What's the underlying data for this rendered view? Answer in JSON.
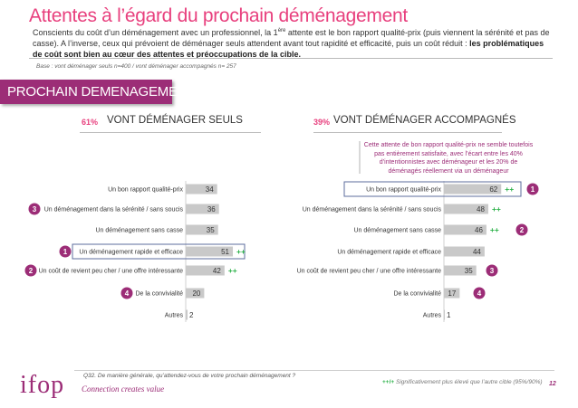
{
  "header": {
    "title": "Attentes à l’égard du prochain déménagement",
    "intro_part1": "Conscients du coût d’un déménagement avec un professionnel, la 1",
    "intro_sup": "ère",
    "intro_part2": " attente est le bon rapport qualité-prix (puis viennent la sérénité et pas de casse). A l’inverse, ceux qui prévoient de déménager seuls attendent avant tout rapidité et efficacité, puis un coût réduit : ",
    "intro_bold": "les problématiques de coût sont bien au cœur des attentes et préoccupations de la cible.",
    "base": "Base : vont déménager seuls n=400 / vont déménager accompagnés n= 257"
  },
  "banner": "PROCHAIN DEMENAGEMENT",
  "note": "Cette attente de bon rapport qualité-prix ne semble toutefois pas entièrement satisfaite, avec l’écart entre les 40% d’intentionnistes avec déménageur et les 20% de déménagés réellement via un déménageur",
  "footer": {
    "question": "Q32. De manière générale, qu’attendez-vous de votre prochain déménagement ?",
    "legend_marker": "++/+",
    "legend_text": " Significativement plus élevé que l’autre cible (95%/90%)",
    "slogan": "Connection creates value",
    "page": "12",
    "logo_text": "ifop"
  },
  "colors": {
    "title": "#e8407e",
    "brand": "#9c2d77",
    "bar": "#c9c9c9",
    "sig": "#2db24a",
    "box": "#5d6d9e"
  },
  "chart_data": [
    {
      "type": "bar",
      "orientation": "horizontal",
      "panel_pct": "61%",
      "panel_title": "VONT DÉMÉNAGER SEULS",
      "categories": [
        "Un bon rapport qualité-prix",
        "Un déménagement dans la sérénité / sans soucis",
        "Un déménagement sans casse",
        "Un déménagement rapide et efficace",
        "Un coût de revient peu cher / une offre intéressante",
        "De la convivialité",
        "Autres"
      ],
      "values": [
        34,
        36,
        35,
        51,
        42,
        20,
        2
      ],
      "significance": [
        "",
        "",
        "",
        "++",
        "++",
        "",
        ""
      ],
      "ranks": [
        "",
        "3",
        "",
        "1",
        "2",
        "4",
        ""
      ],
      "highlight_index": 3
    },
    {
      "type": "bar",
      "orientation": "horizontal",
      "panel_pct": "39%",
      "panel_title": "VONT DÉMÉNAGER ACCOMPAGNÉS",
      "categories": [
        "Un bon rapport qualité-prix",
        "Un déménagement dans la sérénité / sans soucis",
        "Un déménagement sans casse",
        "Un déménagement rapide et efficace",
        "Un coût de revient peu cher / une offre intéressante",
        "De la convivialité",
        "Autres"
      ],
      "values": [
        62,
        48,
        46,
        44,
        35,
        17,
        1
      ],
      "significance": [
        "++",
        "++",
        "++",
        "",
        "",
        "",
        ""
      ],
      "ranks": [
        "1",
        "",
        "2",
        "",
        "3",
        "4",
        ""
      ],
      "highlight_index": 0
    }
  ]
}
